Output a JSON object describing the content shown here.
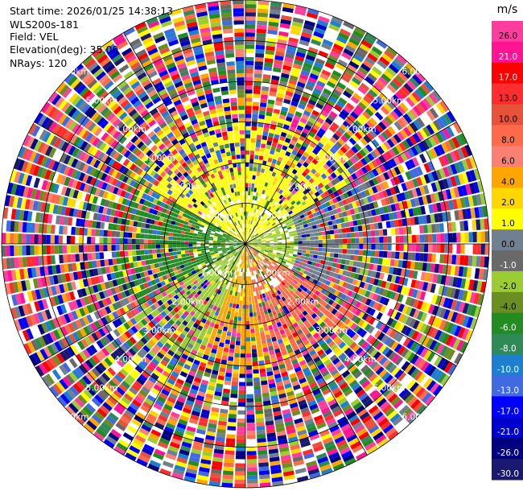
{
  "header": {
    "start_time": "Start time: 2026/01/25 14:38:13",
    "instrument": "WLS200s-181",
    "field": "Field: VEL",
    "elevation": "Elevation(deg): 35.00",
    "nrays": "NRays: 120"
  },
  "chart_data": {
    "type": "ppi",
    "field": "VEL",
    "elevation_deg": 35.0,
    "nrays": 120,
    "range_rings_km": [
      1.0,
      2.0,
      3.0,
      4.0,
      5.0,
      6.0
    ],
    "ring_labels": [
      "1.00km",
      "2.00km",
      "3.00km",
      "4.00km",
      "5.00km",
      "6.00km"
    ],
    "colorbar": {
      "unit": "m/s",
      "ticks": [
        "26.0",
        "21.0",
        "17.0",
        "13.0",
        "10.0",
        "8.0",
        "6.0",
        "4.0",
        "2.0",
        "1.0",
        "0.0",
        "-1.0",
        "-2.0",
        "-4.0",
        "-6.0",
        "-8.0",
        "-10.0",
        "-13.0",
        "-17.0",
        "-21.0",
        "-26.0",
        "-30.0"
      ],
      "colors": [
        "#ff3d9e",
        "#ff1493",
        "#ff0000",
        "#ff2e2e",
        "#e8513a",
        "#ff6a4a",
        "#fa8072",
        "#ffa500",
        "#ffd700",
        "#ffff00",
        "#708090",
        "#696969",
        "#9acd32",
        "#6b8e23",
        "#228b22",
        "#2e8b57",
        "#1e7fd0",
        "#4169e1",
        "#0000ff",
        "#0000cd",
        "#000080",
        "#191970"
      ]
    },
    "inner_palette": [
      "#ffff00",
      "#ffd700",
      "#9acd32",
      "#6b8e23",
      "#228b22",
      "#ffffff"
    ],
    "wind_sectors": [
      {
        "az_from": 300,
        "az_to": 360,
        "main": "#ffff00"
      },
      {
        "az_from": 0,
        "az_to": 60,
        "main": "#ffff00"
      },
      {
        "az_from": 60,
        "az_to": 120,
        "main": "#708090"
      },
      {
        "az_from": 120,
        "az_to": 170,
        "main": "#ff6a4a"
      },
      {
        "az_from": 170,
        "az_to": 200,
        "main": "#ffa500"
      },
      {
        "az_from": 200,
        "az_to": 240,
        "main": "#9acd32"
      },
      {
        "az_from": 240,
        "az_to": 300,
        "main": "#228b22"
      }
    ]
  }
}
